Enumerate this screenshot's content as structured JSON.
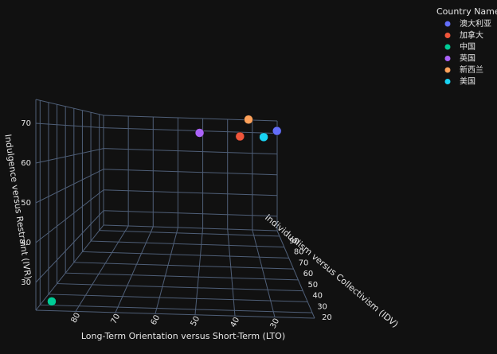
{
  "chart_data": {
    "type": "scatter3d",
    "legend_title": "Country Name",
    "xlabel": "Long-Term Orientation versus Short-Term (LTO)",
    "ylabel": "Individualism versus Collectivism (IDV)",
    "zlabel": "Indulgence versus Restraint (IVR)",
    "xlim": [
      20,
      90
    ],
    "ylim": [
      15,
      95
    ],
    "zlim": [
      23,
      76
    ],
    "xticks": [
      30,
      40,
      50,
      60,
      70,
      80
    ],
    "yticks": [
      20,
      30,
      40,
      50,
      60,
      70,
      80,
      90
    ],
    "zticks": [
      30,
      40,
      50,
      60,
      70
    ],
    "grid": true,
    "legend": "top-right",
    "series": [
      {
        "name": "澳大利亚",
        "color": "#636efa",
        "x": [
          21
        ],
        "y": [
          90
        ],
        "z": [
          71
        ]
      },
      {
        "name": "加拿大",
        "color": "#ef553b",
        "x": [
          36
        ],
        "y": [
          80
        ],
        "z": [
          68
        ]
      },
      {
        "name": "中国",
        "color": "#00cc96",
        "x": [
          87
        ],
        "y": [
          20
        ],
        "z": [
          24
        ]
      },
      {
        "name": "英国",
        "color": "#ab63fa",
        "x": [
          51
        ],
        "y": [
          89
        ],
        "z": [
          69
        ]
      },
      {
        "name": "新西兰",
        "color": "#ffa15a",
        "x": [
          33
        ],
        "y": [
          79
        ],
        "z": [
          75
        ]
      },
      {
        "name": "美国",
        "color": "#19d3f3",
        "x": [
          26
        ],
        "y": [
          91
        ],
        "z": [
          68
        ]
      }
    ]
  }
}
